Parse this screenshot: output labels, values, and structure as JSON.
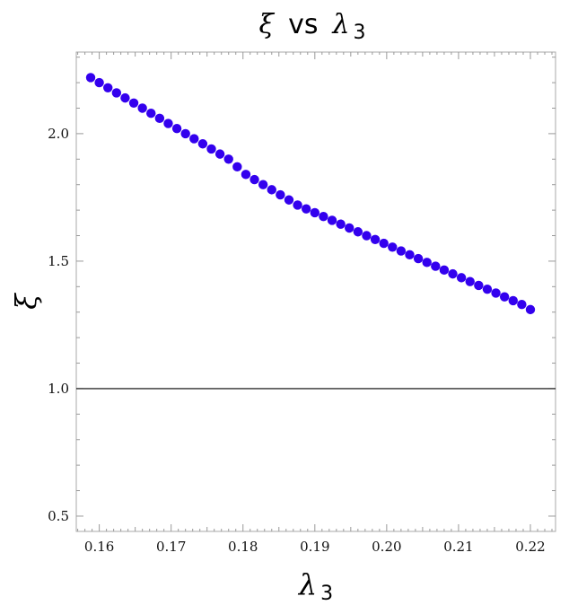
{
  "chart_data": {
    "type": "scatter",
    "title": {
      "symbol": "ξ",
      "connector": "vs",
      "symbol2": "λ",
      "symbol2_sub": "3"
    },
    "xlabel": {
      "symbol": "λ",
      "sub": "3"
    },
    "ylabel": {
      "symbol": "ξ"
    },
    "xlim": [
      0.1568,
      0.2235
    ],
    "ylim": [
      0.44,
      2.32
    ],
    "x_ticks": [
      0.16,
      0.17,
      0.18,
      0.19,
      0.2,
      0.21,
      0.22
    ],
    "x_tick_labels": [
      "0.16",
      "0.17",
      "0.18",
      "0.19",
      "0.20",
      "0.21",
      "0.22"
    ],
    "y_ticks": [
      0.5,
      1.0,
      1.5,
      2.0
    ],
    "y_tick_labels": [
      "0.5",
      "1.0",
      "1.5",
      "2.0"
    ],
    "reference_line": {
      "y": 1.0,
      "color": "#000000"
    },
    "grid": false,
    "marker_color": "#3300ee",
    "x": [
      0.1588,
      0.16,
      0.1612,
      0.1624,
      0.1636,
      0.1648,
      0.166,
      0.1672,
      0.1684,
      0.1696,
      0.1708,
      0.172,
      0.1732,
      0.1744,
      0.1756,
      0.1768,
      0.178,
      0.1792,
      0.1804,
      0.1816,
      0.1828,
      0.184,
      0.1852,
      0.1864,
      0.1876,
      0.1888,
      0.19,
      0.1912,
      0.1924,
      0.1936,
      0.1948,
      0.196,
      0.1972,
      0.1984,
      0.1996,
      0.2008,
      0.202,
      0.2032,
      0.2044,
      0.2056,
      0.2068,
      0.208,
      0.2092,
      0.2104,
      0.2116,
      0.2128,
      0.214,
      0.2152,
      0.2164,
      0.2176,
      0.2188,
      0.22
    ],
    "y": [
      2.22,
      2.2,
      2.18,
      2.16,
      2.14,
      2.12,
      2.1,
      2.08,
      2.06,
      2.04,
      2.02,
      2.0,
      1.98,
      1.96,
      1.94,
      1.92,
      1.9,
      1.87,
      1.84,
      1.82,
      1.8,
      1.78,
      1.76,
      1.74,
      1.72,
      1.705,
      1.69,
      1.675,
      1.66,
      1.645,
      1.63,
      1.615,
      1.6,
      1.585,
      1.57,
      1.555,
      1.54,
      1.525,
      1.51,
      1.495,
      1.48,
      1.465,
      1.45,
      1.435,
      1.42,
      1.405,
      1.39,
      1.375,
      1.36,
      1.345,
      1.33,
      1.31
    ]
  }
}
